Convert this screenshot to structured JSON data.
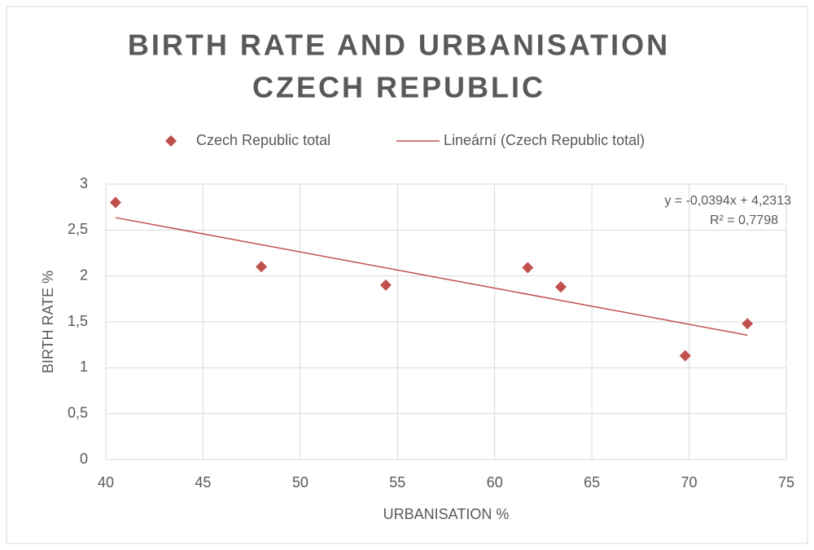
{
  "chart_data": {
    "type": "scatter",
    "title": [
      "BIRTH RATE AND URBANISATION",
      "CZECH REPUBLIC"
    ],
    "xlabel": "URBANISATION %",
    "ylabel": "BIRTH RATE %",
    "series": [
      {
        "name": "Czech Republic total",
        "color": "#c0504d",
        "x": [
          40.5,
          48,
          54.4,
          61.7,
          63.4,
          69.8,
          73
        ],
        "values": [
          2.8,
          2.1,
          1.9,
          2.09,
          1.88,
          1.13,
          1.48
        ]
      }
    ],
    "trendline": {
      "name": "Lineární (Czech Republic total)",
      "color": "#c0504d",
      "slope": -0.0394,
      "intercept": 4.2313,
      "labels": [
        "y = -0,0394x + 4,2313",
        "R² = 0,7798"
      ]
    },
    "xlim": [
      40,
      75
    ],
    "xticks": [
      40,
      45,
      50,
      55,
      60,
      65,
      70,
      75
    ],
    "ylim": [
      0,
      3
    ],
    "yticks": [
      0,
      {
        "value": 0.5,
        "label": "0,5"
      },
      1,
      {
        "value": 1.5,
        "label": "1,5"
      },
      2,
      {
        "value": 2.5,
        "label": "2,5"
      },
      3
    ],
    "grid": true,
    "legend": "top"
  }
}
